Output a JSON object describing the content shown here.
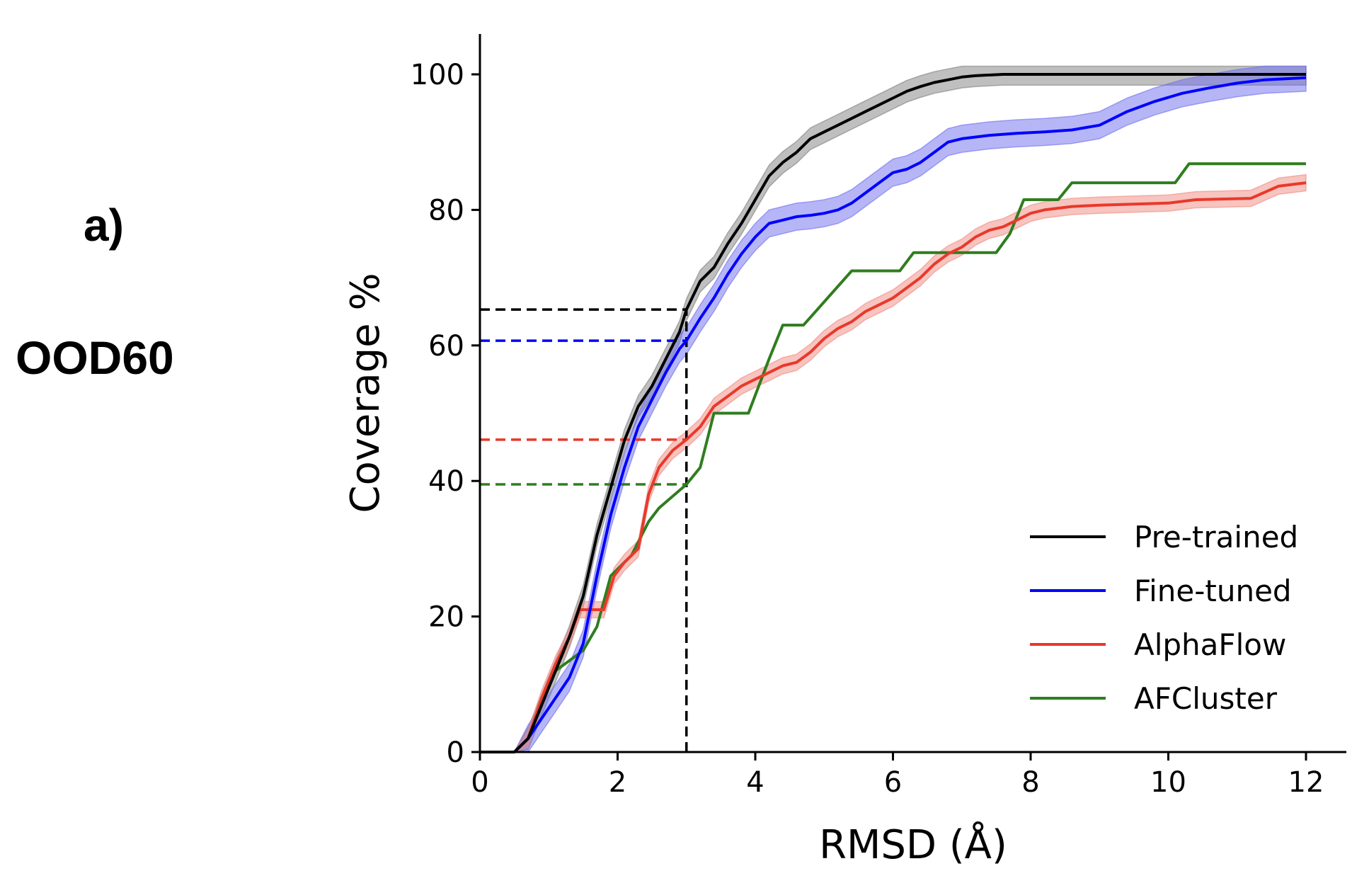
{
  "panel": {
    "letter": "a)",
    "dataset": "OOD60"
  },
  "chart_data": {
    "type": "line",
    "xlabel": "RMSD (Å)",
    "ylabel": "Coverage %",
    "xlim": [
      0,
      12.6
    ],
    "ylim": [
      0,
      106
    ],
    "xticks": [
      0,
      2,
      4,
      6,
      8,
      10,
      12
    ],
    "yticks": [
      0,
      20,
      40,
      60,
      80,
      100
    ],
    "grid": false,
    "legend_position": "lower-right",
    "threshold_x": 3,
    "series": [
      {
        "name": "Pre-trained",
        "color": "#000000",
        "band_color": "#7f7f7f",
        "threshold_y": 65.3,
        "points": [
          [
            0.0,
            0
          ],
          [
            0.5,
            0
          ],
          [
            0.7,
            2
          ],
          [
            0.9,
            7
          ],
          [
            1.1,
            12
          ],
          [
            1.3,
            17
          ],
          [
            1.5,
            23
          ],
          [
            1.7,
            32
          ],
          [
            1.9,
            39
          ],
          [
            2.1,
            46
          ],
          [
            2.3,
            51
          ],
          [
            2.5,
            54
          ],
          [
            2.7,
            58
          ],
          [
            2.9,
            62
          ],
          [
            3.0,
            65.3
          ],
          [
            3.2,
            69.5
          ],
          [
            3.4,
            71.5
          ],
          [
            3.6,
            75
          ],
          [
            3.8,
            78
          ],
          [
            4.0,
            81.5
          ],
          [
            4.2,
            85
          ],
          [
            4.4,
            87
          ],
          [
            4.6,
            88.5
          ],
          [
            4.8,
            90.5
          ],
          [
            5.0,
            91.5
          ],
          [
            5.2,
            92.5
          ],
          [
            5.4,
            93.5
          ],
          [
            5.6,
            94.5
          ],
          [
            5.8,
            95.5
          ],
          [
            6.0,
            96.5
          ],
          [
            6.2,
            97.5
          ],
          [
            6.4,
            98.2
          ],
          [
            6.6,
            98.8
          ],
          [
            6.8,
            99.2
          ],
          [
            7.0,
            99.6
          ],
          [
            7.2,
            99.8
          ],
          [
            7.6,
            100
          ],
          [
            12,
            100
          ]
        ],
        "band": 1.6
      },
      {
        "name": "Fine-tuned",
        "color": "#0000ff",
        "band_color": "#6e6ef0",
        "threshold_y": 60.7,
        "points": [
          [
            0.0,
            0
          ],
          [
            0.5,
            0
          ],
          [
            0.7,
            2
          ],
          [
            0.9,
            5
          ],
          [
            1.1,
            8
          ],
          [
            1.3,
            11
          ],
          [
            1.5,
            16
          ],
          [
            1.7,
            26
          ],
          [
            1.9,
            35
          ],
          [
            2.1,
            42
          ],
          [
            2.3,
            48
          ],
          [
            2.5,
            52
          ],
          [
            2.7,
            56
          ],
          [
            2.9,
            59.5
          ],
          [
            3.0,
            60.7
          ],
          [
            3.2,
            64
          ],
          [
            3.4,
            67
          ],
          [
            3.6,
            70.5
          ],
          [
            3.8,
            73.5
          ],
          [
            4.0,
            76
          ],
          [
            4.2,
            78
          ],
          [
            4.4,
            78.5
          ],
          [
            4.6,
            79
          ],
          [
            4.8,
            79.2
          ],
          [
            5.0,
            79.5
          ],
          [
            5.2,
            80
          ],
          [
            5.4,
            81
          ],
          [
            5.6,
            82.5
          ],
          [
            5.8,
            84
          ],
          [
            6.0,
            85.5
          ],
          [
            6.2,
            86
          ],
          [
            6.4,
            87
          ],
          [
            6.6,
            88.5
          ],
          [
            6.8,
            90
          ],
          [
            7.0,
            90.5
          ],
          [
            7.4,
            91
          ],
          [
            7.8,
            91.3
          ],
          [
            8.2,
            91.5
          ],
          [
            8.6,
            91.8
          ],
          [
            9.0,
            92.5
          ],
          [
            9.4,
            94.5
          ],
          [
            9.8,
            96
          ],
          [
            10.2,
            97.2
          ],
          [
            10.6,
            98
          ],
          [
            11.0,
            98.7
          ],
          [
            11.4,
            99.2
          ],
          [
            12,
            99.5
          ]
        ],
        "band": 2.0
      },
      {
        "name": "AlphaFlow",
        "color": "#e8392b",
        "band_color": "#f08a80",
        "threshold_y": 46.1,
        "points": [
          [
            0.0,
            0
          ],
          [
            0.5,
            0
          ],
          [
            0.7,
            2
          ],
          [
            0.9,
            8
          ],
          [
            1.1,
            13
          ],
          [
            1.3,
            17
          ],
          [
            1.45,
            21
          ],
          [
            1.6,
            21
          ],
          [
            1.8,
            21
          ],
          [
            1.95,
            26
          ],
          [
            2.1,
            28
          ],
          [
            2.3,
            30
          ],
          [
            2.45,
            38
          ],
          [
            2.6,
            42
          ],
          [
            2.8,
            44.5
          ],
          [
            3.0,
            46.1
          ],
          [
            3.2,
            48
          ],
          [
            3.4,
            51
          ],
          [
            3.6,
            52.5
          ],
          [
            3.8,
            54
          ],
          [
            4.0,
            55
          ],
          [
            4.2,
            56
          ],
          [
            4.4,
            57
          ],
          [
            4.6,
            57.5
          ],
          [
            4.8,
            59
          ],
          [
            5.0,
            61
          ],
          [
            5.2,
            62.5
          ],
          [
            5.4,
            63.5
          ],
          [
            5.6,
            65
          ],
          [
            5.8,
            66
          ],
          [
            6.0,
            67
          ],
          [
            6.2,
            68.5
          ],
          [
            6.4,
            70
          ],
          [
            6.6,
            72
          ],
          [
            6.8,
            73.5
          ],
          [
            7.0,
            74.5
          ],
          [
            7.2,
            76
          ],
          [
            7.4,
            77
          ],
          [
            7.6,
            77.5
          ],
          [
            7.8,
            78.5
          ],
          [
            8.0,
            79.5
          ],
          [
            8.2,
            80
          ],
          [
            8.6,
            80.5
          ],
          [
            9.0,
            80.7
          ],
          [
            10.0,
            81
          ],
          [
            10.4,
            81.5
          ],
          [
            11.2,
            81.7
          ],
          [
            11.6,
            83.5
          ],
          [
            12,
            84
          ]
        ],
        "band": 1.2
      },
      {
        "name": "AFCluster",
        "color": "#2f7d1f",
        "band_color": "#2f7d1f",
        "threshold_y": 39.5,
        "points": [
          [
            0.0,
            0
          ],
          [
            0.5,
            0
          ],
          [
            0.7,
            2
          ],
          [
            0.9,
            8
          ],
          [
            1.1,
            12
          ],
          [
            1.5,
            15
          ],
          [
            1.7,
            18.5
          ],
          [
            1.9,
            26
          ],
          [
            2.2,
            29
          ],
          [
            2.45,
            34
          ],
          [
            2.6,
            36
          ],
          [
            3.0,
            39.5
          ],
          [
            3.2,
            42
          ],
          [
            3.4,
            50
          ],
          [
            3.9,
            50
          ],
          [
            4.2,
            58
          ],
          [
            4.4,
            63
          ],
          [
            4.7,
            63
          ],
          [
            5.4,
            71
          ],
          [
            6.1,
            71
          ],
          [
            6.3,
            73.7
          ],
          [
            7.5,
            73.7
          ],
          [
            7.7,
            76.5
          ],
          [
            7.9,
            81.5
          ],
          [
            8.4,
            81.5
          ],
          [
            8.6,
            84
          ],
          [
            10.1,
            84
          ],
          [
            10.3,
            86.8
          ],
          [
            12,
            86.8
          ]
        ],
        "band": 0
      }
    ]
  }
}
